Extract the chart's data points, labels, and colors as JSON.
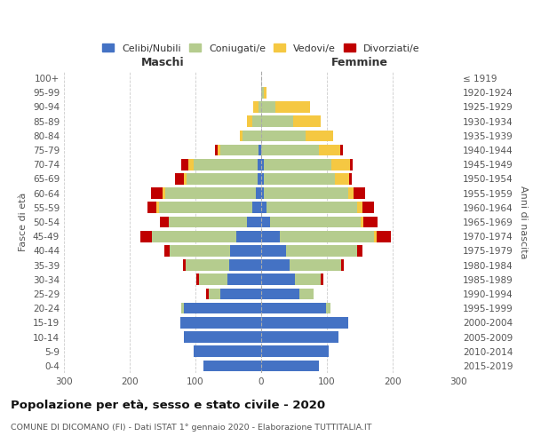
{
  "age_groups": [
    "0-4",
    "5-9",
    "10-14",
    "15-19",
    "20-24",
    "25-29",
    "30-34",
    "35-39",
    "40-44",
    "45-49",
    "50-54",
    "55-59",
    "60-64",
    "65-69",
    "70-74",
    "75-79",
    "80-84",
    "85-89",
    "90-94",
    "95-99",
    "100+"
  ],
  "birth_years": [
    "2015-2019",
    "2010-2014",
    "2005-2009",
    "2000-2004",
    "1995-1999",
    "1990-1994",
    "1985-1989",
    "1980-1984",
    "1975-1979",
    "1970-1974",
    "1965-1969",
    "1960-1964",
    "1955-1959",
    "1950-1954",
    "1945-1949",
    "1940-1944",
    "1935-1939",
    "1930-1934",
    "1925-1929",
    "1920-1924",
    "≤ 1919"
  ],
  "maschi": {
    "celibi": [
      88,
      103,
      118,
      123,
      118,
      62,
      52,
      48,
      47,
      38,
      22,
      13,
      8,
      5,
      5,
      4,
      0,
      0,
      0,
      0,
      0
    ],
    "coniugati": [
      0,
      0,
      0,
      0,
      4,
      18,
      43,
      67,
      92,
      128,
      118,
      142,
      138,
      108,
      98,
      58,
      28,
      14,
      4,
      0,
      0
    ],
    "vedovi": [
      0,
      0,
      0,
      0,
      0,
      0,
      0,
      0,
      0,
      0,
      0,
      4,
      4,
      4,
      8,
      4,
      4,
      8,
      8,
      0,
      0
    ],
    "divorziati": [
      0,
      0,
      0,
      0,
      0,
      4,
      4,
      4,
      8,
      18,
      14,
      14,
      18,
      14,
      10,
      4,
      0,
      0,
      0,
      0,
      0
    ]
  },
  "femmine": {
    "nubili": [
      88,
      103,
      118,
      132,
      98,
      58,
      52,
      43,
      38,
      28,
      13,
      8,
      4,
      4,
      4,
      0,
      0,
      0,
      0,
      0,
      0
    ],
    "coniugate": [
      0,
      0,
      0,
      0,
      8,
      22,
      38,
      78,
      108,
      143,
      138,
      138,
      128,
      108,
      103,
      88,
      68,
      48,
      22,
      4,
      0
    ],
    "vedove": [
      0,
      0,
      0,
      0,
      0,
      0,
      0,
      0,
      0,
      4,
      4,
      8,
      8,
      22,
      28,
      32,
      42,
      42,
      52,
      4,
      0
    ],
    "divorziate": [
      0,
      0,
      0,
      0,
      0,
      0,
      4,
      4,
      8,
      22,
      22,
      18,
      18,
      4,
      4,
      4,
      0,
      0,
      0,
      0,
      0
    ]
  },
  "colors": {
    "celibi": "#4472c4",
    "coniugati": "#b5cc8e",
    "vedovi": "#f5c842",
    "divorziati": "#c00000"
  },
  "legend_labels": [
    "Celibi/Nubili",
    "Coniugati/e",
    "Vedovi/e",
    "Divorziati/e"
  ],
  "title": "Popolazione per età, sesso e stato civile - 2020",
  "subtitle": "COMUNE DI DICOMANO (FI) - Dati ISTAT 1° gennaio 2020 - Elaborazione TUTTITALIA.IT",
  "xlabel_left": "Maschi",
  "xlabel_right": "Femmine",
  "ylabel_left": "Fasce di età",
  "ylabel_right": "Anni di nascita",
  "xlim": 300,
  "background_color": "#ffffff",
  "grid_color": "#cccccc"
}
